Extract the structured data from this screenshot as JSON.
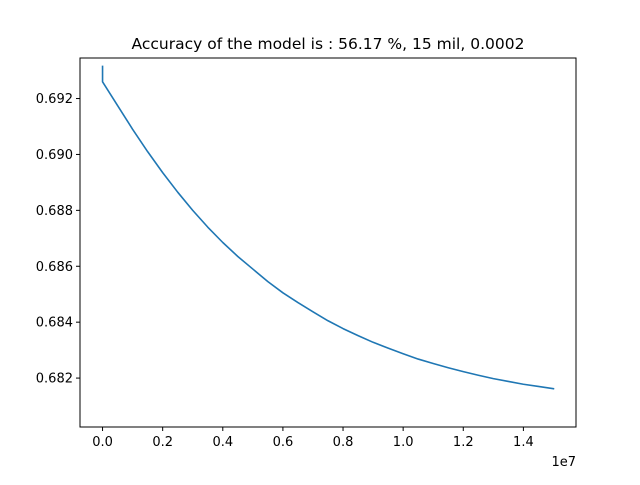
{
  "chart_data": {
    "type": "line",
    "title": "Accuracy of the model is :  56.17 %, 15 mil, 0.0002",
    "xlabel": "",
    "ylabel": "",
    "x_offset_label": "1e7",
    "x_scale": 10000000,
    "xlim": [
      -0.075,
      1.575
    ],
    "ylim": [
      0.68025,
      0.69345
    ],
    "grid": false,
    "xticks": [
      0.0,
      0.2,
      0.4,
      0.6,
      0.8,
      1.0,
      1.2,
      1.4
    ],
    "xtick_labels": [
      "0.0",
      "0.2",
      "0.4",
      "0.6",
      "0.8",
      "1.0",
      "1.2",
      "1.4"
    ],
    "yticks": [
      0.682,
      0.684,
      0.686,
      0.688,
      0.69,
      0.692
    ],
    "ytick_labels": [
      "0.682",
      "0.684",
      "0.686",
      "0.688",
      "0.690",
      "0.692"
    ],
    "series": [
      {
        "color": "#1f77b4",
        "x": [
          0.0,
          0.0,
          0.05,
          0.1,
          0.15,
          0.2,
          0.25,
          0.3,
          0.35,
          0.4,
          0.45,
          0.5,
          0.55,
          0.6,
          0.65,
          0.7,
          0.75,
          0.8,
          0.85,
          0.9,
          0.95,
          1.0,
          1.05,
          1.1,
          1.15,
          1.2,
          1.25,
          1.3,
          1.35,
          1.4,
          1.45,
          1.5
        ],
        "y": [
          0.69315,
          0.6926,
          0.69175,
          0.6909,
          0.6901,
          0.68935,
          0.68865,
          0.688,
          0.6874,
          0.68685,
          0.68635,
          0.6859,
          0.68545,
          0.68505,
          0.6847,
          0.68437,
          0.68405,
          0.68377,
          0.68352,
          0.68328,
          0.68307,
          0.68287,
          0.68268,
          0.68252,
          0.68237,
          0.68223,
          0.6821,
          0.68198,
          0.68188,
          0.68178,
          0.6817,
          0.68162
        ]
      }
    ]
  }
}
